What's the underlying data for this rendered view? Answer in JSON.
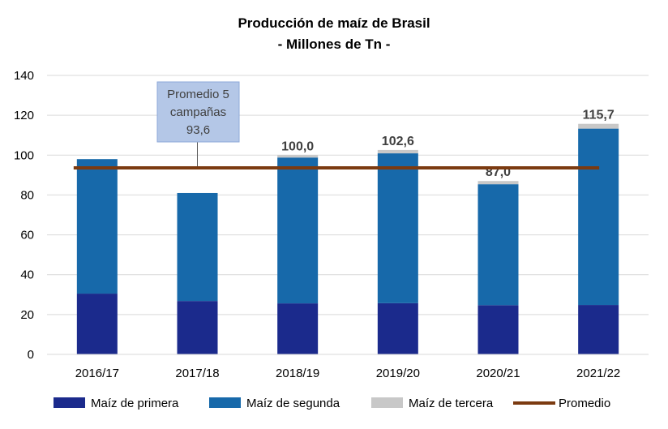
{
  "colors": {
    "primera": "#1b2a8c",
    "segunda": "#1769aa",
    "tercera": "#c8c8c8",
    "promedio": "#7b3a10",
    "callout_fill": "#b4c7e7",
    "callout_border": "#8ea9d8",
    "grid": "#d9d9d9"
  },
  "chart_data": {
    "type": "bar",
    "stacked": true,
    "title": [
      "Producción de maíz de Brasil",
      "- Millones de Tn -"
    ],
    "categories": [
      "2016/17",
      "2017/18",
      "2018/19",
      "2019/20",
      "2020/21",
      "2021/22"
    ],
    "ylim": [
      0,
      140
    ],
    "yticks": [
      0,
      20,
      40,
      60,
      80,
      100,
      120,
      140
    ],
    "grid": true,
    "legend_position": "bottom",
    "series": [
      {
        "name": "Maíz de primera",
        "values": [
          30.5,
          26.8,
          25.6,
          25.7,
          24.7,
          24.8
        ]
      },
      {
        "name": "Maíz de segunda",
        "values": [
          67.5,
          54.2,
          73.2,
          75.2,
          60.7,
          88.5
        ]
      },
      {
        "name": "Maíz de tercera",
        "values": [
          0,
          0,
          1.2,
          1.7,
          1.6,
          2.4
        ]
      }
    ],
    "total_labels": [
      "",
      "",
      "100,0",
      "102,6",
      "87,0",
      "115,7"
    ],
    "promedio": {
      "name": "Promedio",
      "value": 93.6
    },
    "callout": [
      "Promedio 5",
      "campañas",
      "93,6"
    ]
  }
}
